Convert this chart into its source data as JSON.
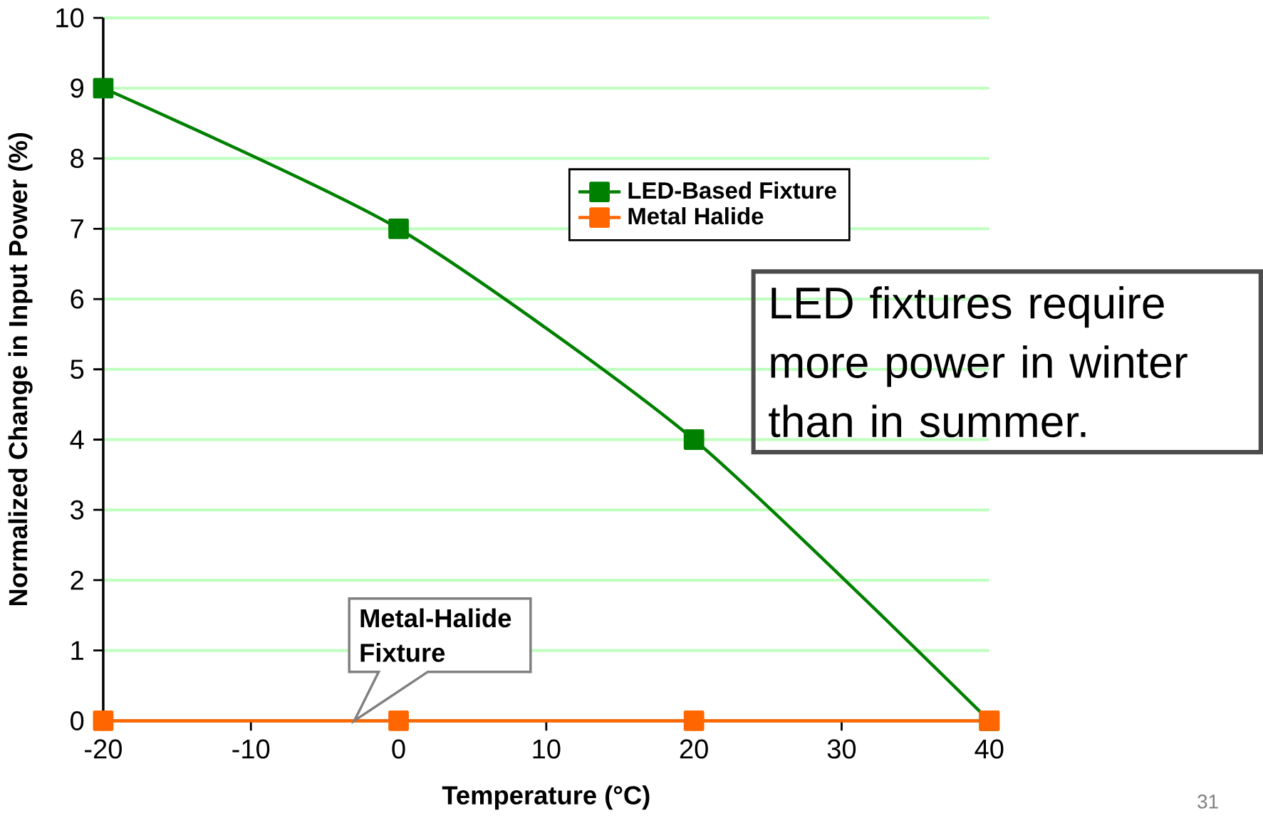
{
  "chart_data": {
    "type": "line",
    "xlabel": "Temperature (°C)",
    "ylabel": "Normalized Change in Input Power (%)",
    "x": [
      -20,
      0,
      20,
      40
    ],
    "series": [
      {
        "name": "LED-Based Fixture",
        "color": "#008000",
        "values": [
          9,
          7,
          4,
          0
        ]
      },
      {
        "name": "Metal Halide",
        "color": "#ff6600",
        "values": [
          0,
          0,
          0,
          0
        ]
      }
    ],
    "xlim": [
      -20,
      40
    ],
    "xticks": [
      -20,
      -10,
      0,
      10,
      20,
      30,
      40
    ],
    "ylim": [
      0,
      10
    ],
    "yticks": [
      0,
      1,
      2,
      3,
      4,
      5,
      6,
      7,
      8,
      9,
      10
    ],
    "grid": "y",
    "legend": "top",
    "marker": "square",
    "line_style": "solid",
    "annotations": [
      {
        "text": "Metal-Halide Fixture",
        "x": -3,
        "y": 0
      },
      "LED fixtures require more power in winter than in summer.",
      "31"
    ]
  }
}
